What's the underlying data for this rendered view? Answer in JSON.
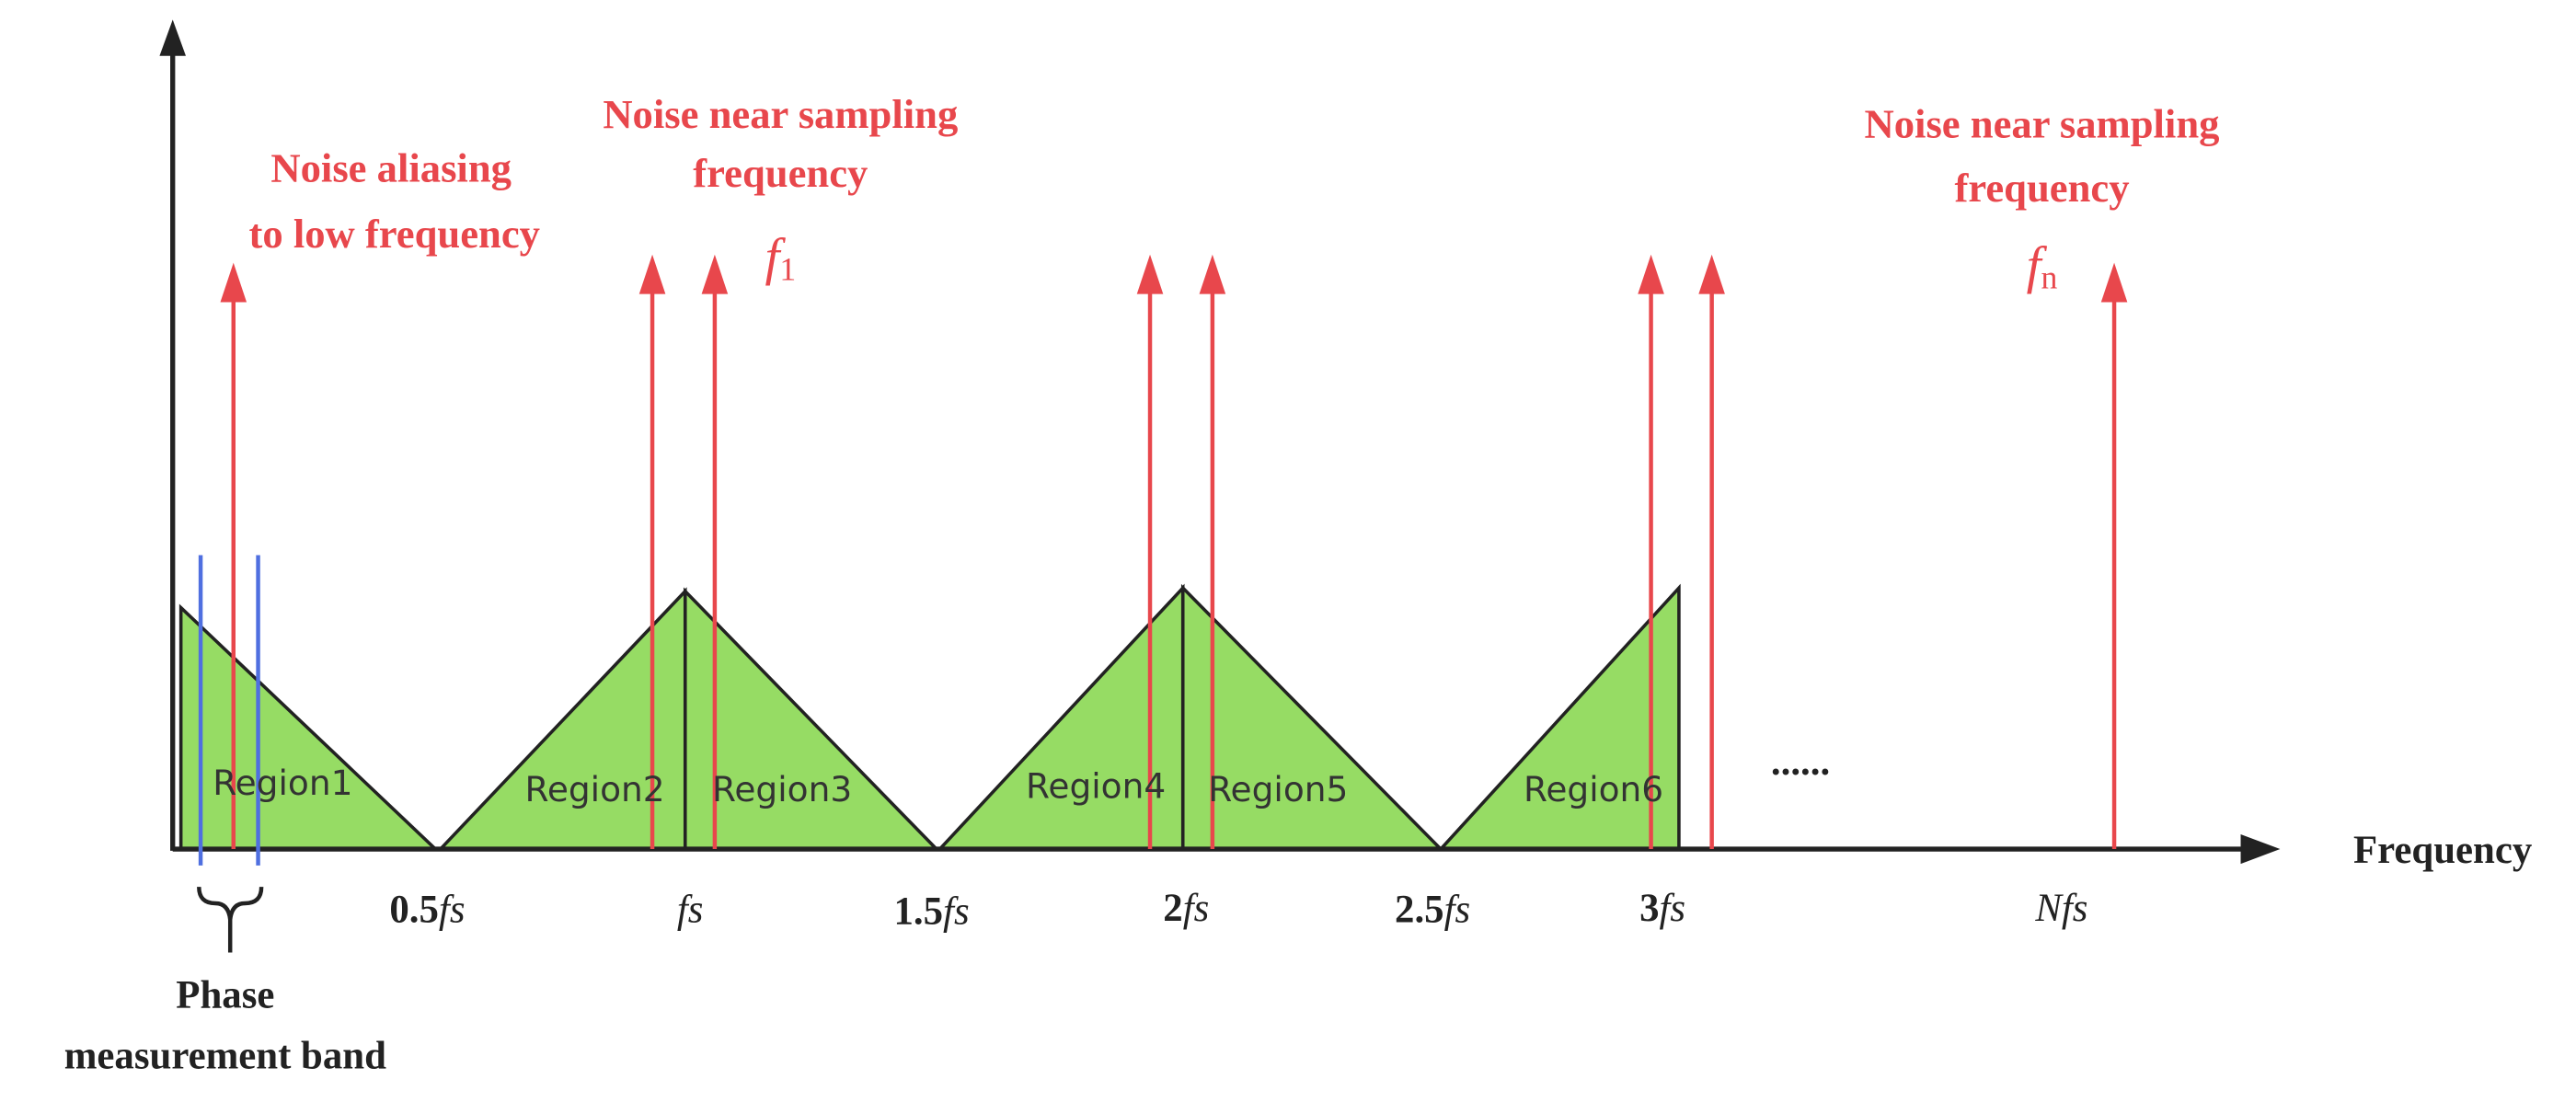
{
  "annotations": {
    "aliasing": [
      "Noise aliasing",
      "to low frequency"
    ],
    "near_sampling_1": [
      "Noise near sampling",
      "frequency"
    ],
    "near_sampling_n": [
      "Noise near sampling",
      "frequency"
    ],
    "f1": {
      "base": "f",
      "sub": "1"
    },
    "fn": {
      "base": "f",
      "sub": "n"
    }
  },
  "regions": [
    "Region1",
    "Region2",
    "Region3",
    "Region4",
    "Region5",
    "Region6"
  ],
  "ellipsis": "......",
  "ticks": [
    {
      "num": "0.5",
      "var": "fs"
    },
    {
      "var": "fs"
    },
    {
      "num": "1.5",
      "var": "fs"
    },
    {
      "num": "2",
      "var": "fs"
    },
    {
      "num": "2.5",
      "var": "fs"
    },
    {
      "num": "3",
      "var": "fs"
    },
    {
      "var": "Nfs"
    }
  ],
  "x_axis_label": "Frequency",
  "band_label": [
    "Phase",
    "measurement band"
  ]
}
